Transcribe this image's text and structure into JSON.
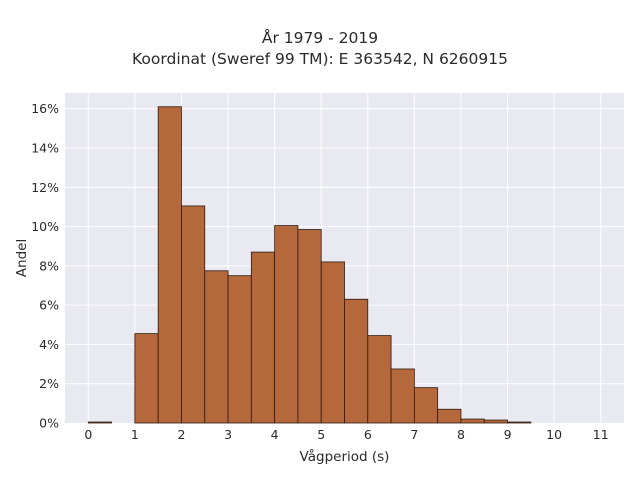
{
  "chart_data": {
    "type": "bar",
    "title": "År 1979 - 2019",
    "subtitle": "Koordinat (Sweref 99 TM): E 363542, N 6260915",
    "xlabel": "Vågperiod (s)",
    "ylabel": "Andel",
    "xlim": [
      -0.5,
      11.5
    ],
    "ylim": [
      0,
      0.168
    ],
    "xticks": [
      0,
      1,
      2,
      3,
      4,
      5,
      6,
      7,
      8,
      9,
      10,
      11
    ],
    "yticks": [
      0,
      0.02,
      0.04,
      0.06,
      0.08,
      0.1,
      0.12,
      0.14,
      0.16
    ],
    "ytick_labels": [
      "0%",
      "2%",
      "4%",
      "6%",
      "8%",
      "10%",
      "12%",
      "14%",
      "16%"
    ],
    "bin_width": 0.5,
    "bin_starts": [
      0,
      1,
      1.5,
      2,
      2.5,
      3,
      3.5,
      4,
      4.5,
      5,
      5.5,
      6,
      6.5,
      7,
      7.5,
      8,
      8.5,
      9
    ],
    "values": [
      0.0005,
      0.0455,
      0.161,
      0.1105,
      0.0775,
      0.075,
      0.087,
      0.1005,
      0.0985,
      0.082,
      0.063,
      0.0445,
      0.0275,
      0.018,
      0.007,
      0.002,
      0.0015,
      0.0005
    ],
    "grid": true,
    "bar_color": "#b5683b",
    "bar_edge_color": "#2e1a0f",
    "plot_bg": "#e9e9f1"
  }
}
